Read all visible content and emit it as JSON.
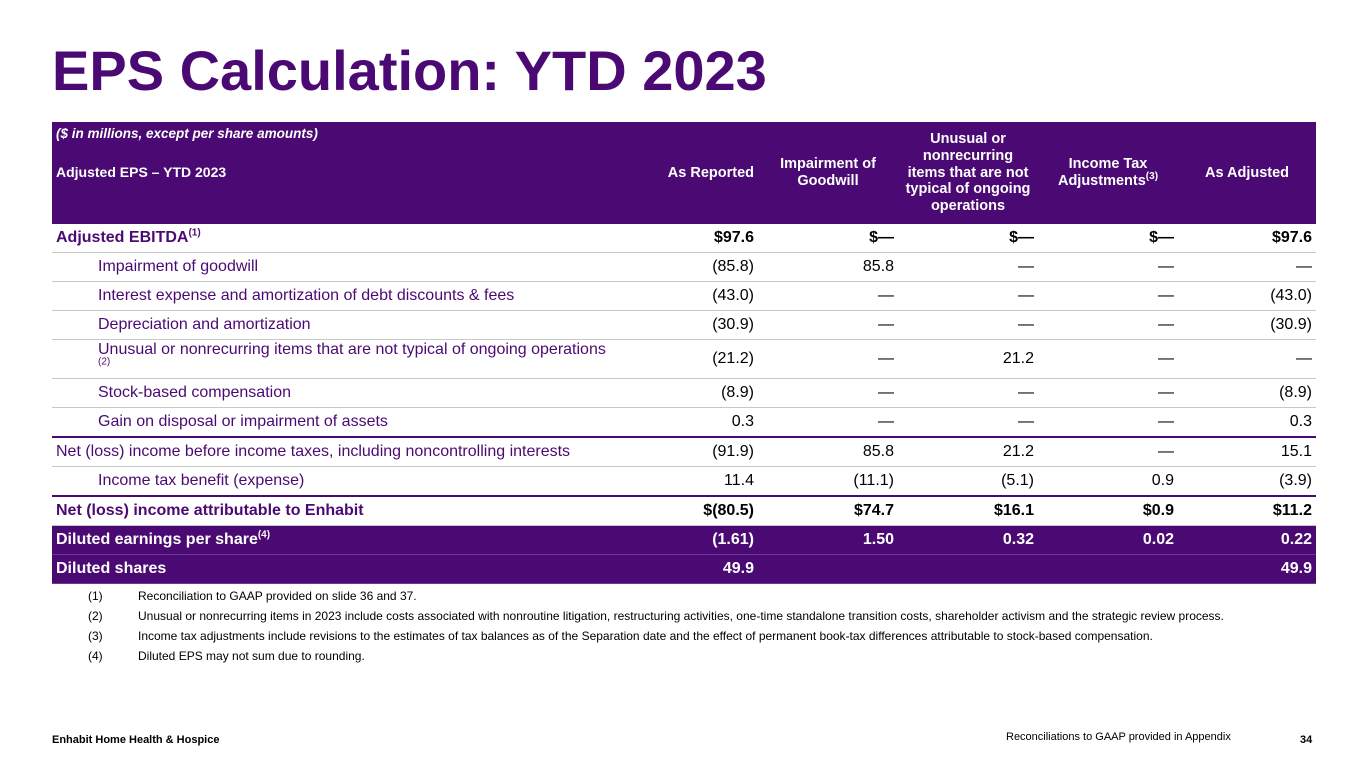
{
  "title": "EPS Calculation: YTD 2023",
  "table": {
    "note": "($ in millions, except per share amounts)",
    "subtitle": "Adjusted EPS – YTD 2023",
    "headers": {
      "as_reported": "As Reported",
      "impairment": "Impairment of Goodwill",
      "unusual": "Unusual or nonrecurring items that are not typical of ongoing operations",
      "income_tax": "Income Tax Adjustments",
      "income_tax_sup": "(3)",
      "as_adjusted": "As Adjusted"
    },
    "rows": [
      {
        "label": "Adjusted EBITDA",
        "sup": "(1)",
        "values": [
          "$97.6",
          "$—",
          "$—",
          "$—",
          "$97.6"
        ]
      },
      {
        "label": "Impairment of goodwill",
        "sup": "",
        "values": [
          "(85.8)",
          "85.8",
          "—",
          "—",
          "—"
        ]
      },
      {
        "label": "Interest expense and amortization of debt discounts & fees",
        "sup": "",
        "values": [
          "(43.0)",
          "—",
          "—",
          "—",
          "(43.0)"
        ]
      },
      {
        "label": "Depreciation and amortization",
        "sup": "",
        "values": [
          "(30.9)",
          "—",
          "—",
          "—",
          "(30.9)"
        ]
      },
      {
        "label": "Unusual or nonrecurring items that are not typical of ongoing operations",
        "sup": "(2)",
        "values": [
          "(21.2)",
          "—",
          "21.2",
          "—",
          "—"
        ]
      },
      {
        "label": "Stock-based compensation",
        "sup": "",
        "values": [
          "(8.9)",
          "—",
          "—",
          "—",
          "(8.9)"
        ]
      },
      {
        "label": "Gain on disposal or impairment of assets",
        "sup": "",
        "values": [
          "0.3",
          "—",
          "—",
          "—",
          "0.3"
        ]
      },
      {
        "label": "Net (loss) income before income taxes, including noncontrolling interests",
        "sup": "",
        "values": [
          "(91.9)",
          "85.8",
          "21.2",
          "—",
          "15.1"
        ]
      },
      {
        "label": "Income tax benefit (expense)",
        "sup": "",
        "values": [
          "11.4",
          "(11.1)",
          "(5.1)",
          "0.9",
          "(3.9)"
        ]
      },
      {
        "label": "Net (loss) income attributable to Enhabit",
        "sup": "",
        "values": [
          "$(80.5)",
          "$74.7",
          "$16.1",
          "$0.9",
          "$11.2"
        ]
      },
      {
        "label": "Diluted earnings per share",
        "sup": "(4)",
        "values": [
          "(1.61)",
          "1.50",
          "0.32",
          "0.02",
          "0.22"
        ]
      },
      {
        "label": "Diluted shares",
        "sup": "",
        "values": [
          "49.9",
          "",
          "",
          "",
          "49.9"
        ]
      }
    ]
  },
  "footnotes": [
    {
      "num": "(1)",
      "text": "Reconciliation to GAAP provided on slide 36 and 37."
    },
    {
      "num": "(2)",
      "text": "Unusual or nonrecurring items in 2023 include costs associated with nonroutine litigation, restructuring activities, one-time standalone transition costs, shareholder activism and the strategic review process."
    },
    {
      "num": "(3)",
      "text": "Income tax adjustments include revisions to the estimates of tax balances as of the Separation date and the effect of permanent book-tax differences attributable to stock-based compensation."
    },
    {
      "num": "(4)",
      "text": "Diluted EPS may not sum due to rounding."
    }
  ],
  "footer": {
    "company": "Enhabit Home Health & Hospice",
    "note": "Reconciliations to GAAP provided in Appendix",
    "page": "34"
  },
  "colors": {
    "brand_purple": "#4b0a73"
  }
}
